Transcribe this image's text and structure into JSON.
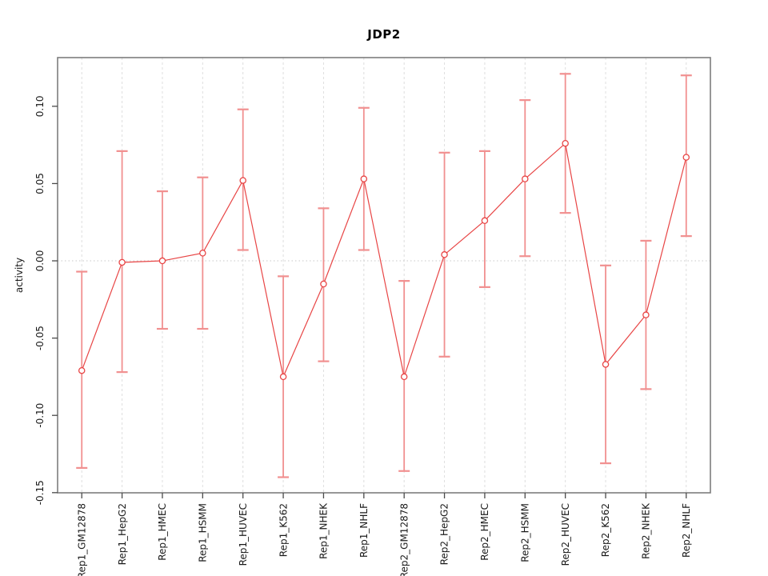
{
  "title": "JDP2",
  "chart_data": {
    "type": "line",
    "title": "JDP2",
    "xlabel": "",
    "ylabel": "activity",
    "legend": "none",
    "grid": "vertical dashed gridline at each category; dotted horizontal line at y=0 only",
    "marker": "open-circle",
    "error_bars": true,
    "categories": [
      "Rep1_GM12878",
      "Rep1_HepG2",
      "Rep1_HMEC",
      "Rep1_HSMM",
      "Rep1_HUVEC",
      "Rep1_K562",
      "Rep1_NHEK",
      "Rep1_NHLF",
      "Rep2_GM12878",
      "Rep2_HepG2",
      "Rep2_HMEC",
      "Rep2_HSMM",
      "Rep2_HUVEC",
      "Rep2_K562",
      "Rep2_NHEK",
      "Rep2_NHLF"
    ],
    "series": [
      {
        "name": "activity",
        "values": [
          -0.071,
          -0.001,
          0.0,
          0.005,
          0.052,
          -0.075,
          -0.015,
          0.053,
          -0.075,
          0.004,
          0.026,
          0.053,
          0.076,
          -0.067,
          -0.035,
          0.067
        ],
        "error_low": [
          -0.134,
          -0.072,
          -0.044,
          -0.044,
          0.007,
          -0.14,
          -0.065,
          0.007,
          -0.136,
          -0.062,
          -0.017,
          0.003,
          0.031,
          -0.131,
          -0.083,
          0.016
        ],
        "error_high": [
          -0.007,
          0.071,
          0.045,
          0.054,
          0.098,
          -0.01,
          0.034,
          0.099,
          -0.013,
          0.07,
          0.071,
          0.104,
          0.121,
          -0.003,
          0.013,
          0.12
        ]
      }
    ],
    "ylim": [
      -0.1501,
      0.1315
    ],
    "ytick_values": [
      -0.15,
      -0.1,
      -0.05,
      0.0,
      0.05,
      0.1
    ],
    "ytick_labels": [
      "-0.15",
      "-0.10",
      "-0.05",
      "0.00",
      "0.05",
      "0.10"
    ],
    "colors": {
      "line": "#e84545",
      "marker_stroke": "#e84545",
      "marker_fill": "#ffffff",
      "error_bar": "#f19090",
      "gridline": "#dedede",
      "zero_line": "#c9c9c9",
      "border": "#7d7d7d",
      "tick": "#4a4a4a",
      "text": "#1a1a1a",
      "background": "#ffffff"
    }
  }
}
